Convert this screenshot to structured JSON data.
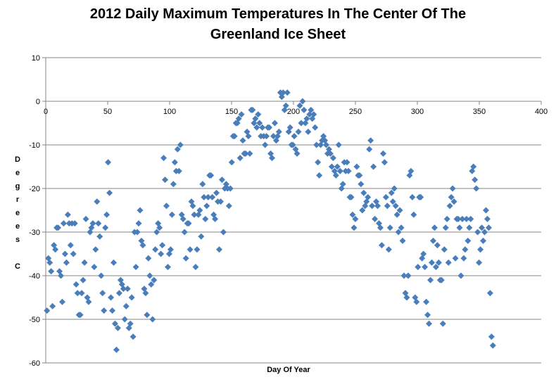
{
  "chart_data": {
    "type": "scatter",
    "title_lines": [
      "2012 Daily Maximum Temperatures In The Center Of The",
      "Greenland Ice Sheet"
    ],
    "xlabel": "Day Of Year",
    "ylabel_letters": [
      "D",
      "e",
      "g",
      "r",
      "e",
      "e",
      "s",
      "",
      "C"
    ],
    "xlim": [
      0,
      400
    ],
    "ylim": [
      -60,
      10
    ],
    "xticks": [
      0,
      50,
      100,
      150,
      200,
      250,
      300,
      350,
      400
    ],
    "yticks": [
      10,
      0,
      -10,
      -20,
      -30,
      -40,
      -50,
      -60
    ],
    "grid": "horizontal",
    "marker_color": "#4a7ebb",
    "x_range": [
      1,
      361
    ],
    "y": [
      -48,
      -36,
      -37,
      -39,
      -47,
      -33,
      -34,
      -29,
      -29,
      -39,
      -40,
      -46,
      -28,
      -35,
      -37,
      -26,
      -28,
      -33,
      -28,
      -35,
      -28,
      -42,
      -44,
      -49,
      -49,
      -44,
      -41,
      -37,
      -27,
      -45,
      -46,
      -30,
      -29,
      -28,
      -38,
      -34,
      -23,
      -28,
      -31,
      -40,
      -44,
      -48,
      -29,
      -26,
      -14,
      -21,
      -45,
      -48,
      -37,
      -51,
      -57,
      -52,
      -44,
      -41,
      -42,
      -43,
      -50,
      -47,
      -43,
      -52,
      -51,
      -45,
      -54,
      -30,
      -38,
      -30,
      -28,
      -25,
      -32,
      -33,
      -43,
      -44,
      -49,
      -36,
      -40,
      -42,
      -50,
      -41,
      -34,
      -30,
      -28,
      -29,
      -35,
      -33,
      -13,
      -18,
      -24,
      -38,
      -35,
      -34,
      -26,
      -19,
      -14,
      -16,
      -11,
      -16,
      -10,
      -26,
      -27,
      -30,
      -36,
      -28,
      -28,
      -34,
      -23,
      -24,
      -26,
      -38,
      -34,
      -26,
      -25,
      -31,
      -19,
      -22,
      -27,
      -24,
      -22,
      -17,
      -17,
      -22,
      -26,
      -27,
      -21,
      -23,
      -34,
      -23,
      -18,
      -30,
      -20,
      -19,
      -20,
      -24,
      -20,
      -14,
      -8,
      -8,
      -5,
      -5,
      -4,
      -13,
      -3,
      -9,
      -12,
      -12,
      -7,
      -8,
      -12,
      -2,
      -2,
      -5,
      -4,
      -6,
      -3,
      -5,
      -8,
      -6,
      -8,
      -10,
      -8,
      -6,
      -6,
      -12,
      -13,
      -8,
      -5,
      -9,
      -8,
      -7,
      2,
      1,
      2,
      -2,
      -1,
      2,
      -7,
      -6,
      -10,
      -10,
      -8,
      -11,
      -12,
      -7,
      -1,
      -5,
      0,
      -2,
      -5,
      -4,
      -7,
      -3,
      -2,
      -4,
      -3,
      -6,
      -10,
      -14,
      -17,
      -10,
      -9,
      -8,
      -9,
      -10,
      -12,
      -11,
      -12,
      -15,
      -13,
      -16,
      -17,
      -15,
      -10,
      -16,
      -20,
      -19,
      -14,
      -16,
      -14,
      -16,
      -22,
      -22,
      -26,
      -29,
      -27,
      -15,
      -17,
      -17,
      -19,
      -25,
      -21,
      -24,
      -23,
      -22,
      -11,
      -9,
      -24,
      -15,
      -27,
      -23,
      -24,
      -28,
      -29,
      -33,
      -12,
      -14,
      -22,
      -24,
      -34,
      -29,
      -21,
      -23,
      -20,
      -24,
      -26,
      -30,
      -25,
      -29,
      -32,
      -40,
      -44,
      -45,
      -40,
      -17,
      -16,
      -22,
      -26,
      -45,
      -46,
      -38,
      -22,
      -22,
      -36,
      -35,
      -38,
      -46,
      -49,
      -51,
      -41,
      -37,
      -32,
      -29,
      -38,
      -33,
      -37,
      -41,
      -41,
      -51,
      -34,
      -29,
      -27,
      -37,
      -24,
      -22,
      -20,
      -23,
      -36,
      -27,
      -27,
      -29,
      -40,
      -27,
      -36,
      -34,
      -27,
      -32,
      -29,
      -27,
      -16,
      -15,
      -18,
      -20,
      -30,
      -37,
      -34,
      -29,
      -32,
      -30,
      -25,
      -27,
      -29,
      -44,
      -54,
      -56
    ]
  }
}
